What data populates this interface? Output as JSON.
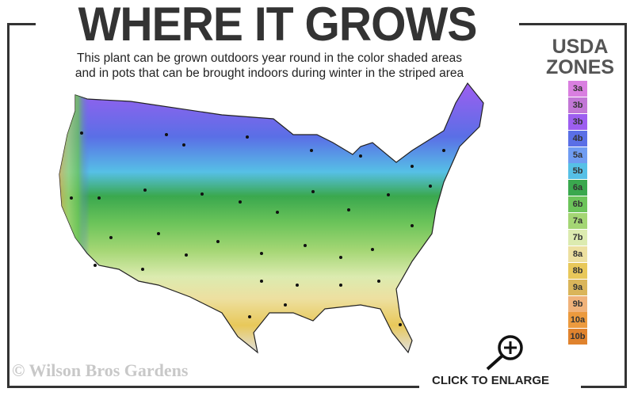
{
  "header": {
    "title": "WHERE IT GROWS",
    "subtitle_line1": "This plant can be grown outdoors year round in the color shaded areas",
    "subtitle_line2": "and in pots that can be brought indoors during winter in the striped area"
  },
  "legend": {
    "title_line1": "USDA",
    "title_line2": "ZONES",
    "zones": [
      {
        "label": "3a",
        "color": "#d97fe0"
      },
      {
        "label": "3b",
        "color": "#c277d6"
      },
      {
        "label": "3b",
        "color": "#9d5ef0"
      },
      {
        "label": "4b",
        "color": "#5a6fe6"
      },
      {
        "label": "5a",
        "color": "#6f9cf2"
      },
      {
        "label": "5b",
        "color": "#56c0e6"
      },
      {
        "label": "6a",
        "color": "#3aa84e"
      },
      {
        "label": "6b",
        "color": "#6cc45a"
      },
      {
        "label": "7a",
        "color": "#a4d674"
      },
      {
        "label": "7b",
        "color": "#dcebb0"
      },
      {
        "label": "8a",
        "color": "#ede0a0"
      },
      {
        "label": "8b",
        "color": "#e8c85a"
      },
      {
        "label": "9a",
        "color": "#dab55a"
      },
      {
        "label": "9b",
        "color": "#f0b27a"
      },
      {
        "label": "10a",
        "color": "#ec9a3e"
      },
      {
        "label": "10b",
        "color": "#e0832e"
      }
    ]
  },
  "footer": {
    "copyright": "© Wilson Bros Gardens",
    "enlarge_label": "CLICK TO ENLARGE"
  }
}
